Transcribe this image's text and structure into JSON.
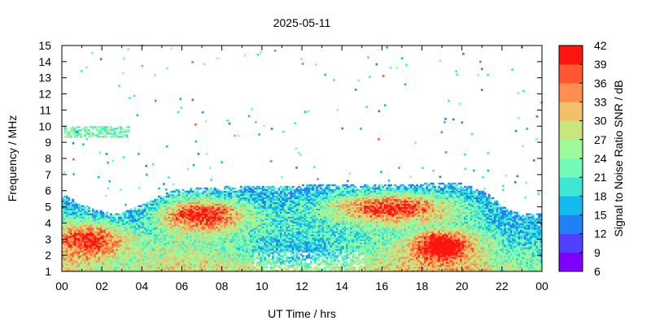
{
  "chart_data": {
    "type": "heatmap",
    "title": "2025-05-11",
    "xlabel": "UT Time / hrs",
    "ylabel": "Frequency / MHz",
    "xlim": [
      0,
      24
    ],
    "ylim": [
      1,
      15
    ],
    "x_ticks": [
      "00",
      "02",
      "04",
      "06",
      "08",
      "10",
      "12",
      "14",
      "16",
      "18",
      "20",
      "22",
      "00"
    ],
    "y_ticks": [
      "1",
      "2",
      "3",
      "4",
      "5",
      "6",
      "7",
      "8",
      "9",
      "10",
      "11",
      "12",
      "13",
      "14",
      "15"
    ],
    "colorbar": {
      "label": "Signal to Noise Ratio SNR / dB",
      "range": [
        6,
        42
      ],
      "ticks": [
        "42",
        "39",
        "36",
        "33",
        "30",
        "27",
        "24",
        "21",
        "18",
        "15",
        "12",
        "9",
        "6"
      ],
      "colors": [
        "#7f00ff",
        "#5040fc",
        "#1f81f3",
        "#13baed",
        "#3ee6d4",
        "#72fbb8",
        "#9ffb9a",
        "#c7e67e",
        "#f3c06a",
        "#ff8f50",
        "#ff5831",
        "#ff1510"
      ]
    },
    "envelope": {
      "hours": [
        0,
        1,
        2,
        2.6,
        3,
        4,
        5,
        5.6,
        6,
        8,
        10,
        12,
        14,
        16,
        18,
        20,
        21,
        21.6,
        22,
        22.5,
        23,
        24
      ],
      "upper_mhz": [
        5.8,
        5.1,
        4.7,
        4.5,
        4.6,
        5.1,
        5.7,
        6.0,
        6.1,
        6.2,
        6.2,
        6.3,
        6.3,
        6.3,
        6.4,
        6.4,
        6.0,
        5.5,
        5.0,
        4.7,
        4.6,
        4.5
      ]
    },
    "note": "Ionogram SNR heatmap; strongest returns (39-42 dB) in 2-5 MHz band around 05-09 UT and 14-20 UT; scattered weak echoes up to 15 MHz."
  }
}
